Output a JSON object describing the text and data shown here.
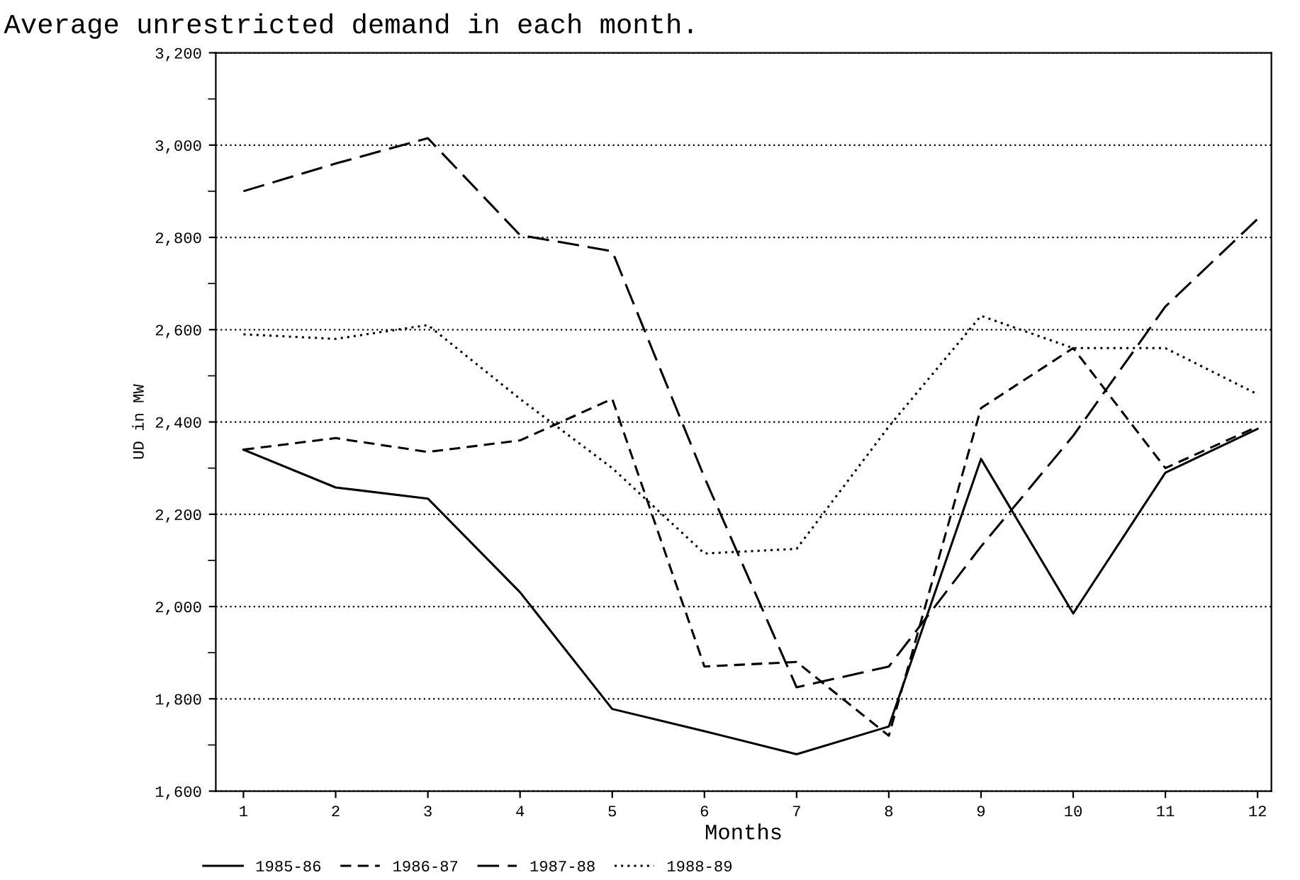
{
  "chart_data": {
    "type": "line",
    "title": "Average unrestricted demand in each month.",
    "xlabel": "Months",
    "ylabel": "UD in MW",
    "categories": [
      "1",
      "2",
      "3",
      "4",
      "5",
      "6",
      "7",
      "8",
      "9",
      "10",
      "11",
      "12"
    ],
    "series": [
      {
        "name": "1985-86",
        "color": "#000000",
        "line_style": "solid",
        "values": [
          2340,
          2258,
          2234,
          2031,
          1778,
          1730,
          1680,
          1740,
          2320,
          1985,
          2290,
          2385
        ]
      },
      {
        "name": "1986-87",
        "color": "#000000",
        "line_style": "dashed",
        "values": [
          2340,
          2365,
          2335,
          2360,
          2450,
          1870,
          1880,
          1720,
          2430,
          2560,
          2300,
          2390
        ]
      },
      {
        "name": "1987-88",
        "color": "#000000",
        "line_style": "longdash",
        "values": [
          2900,
          2960,
          3015,
          2805,
          2770,
          2280,
          1825,
          1870,
          2130,
          2370,
          2650,
          2840
        ]
      },
      {
        "name": "1988-89",
        "color": "#000000",
        "line_style": "dotted",
        "values": [
          2590,
          2580,
          2610,
          2450,
          2300,
          2115,
          2125,
          2390,
          2630,
          2560,
          2560,
          2460
        ]
      }
    ],
    "ylim": [
      1600,
      3200
    ],
    "yticks": [
      {
        "value": 1600,
        "label": "1,600"
      },
      {
        "value": 1700,
        "label": null
      },
      {
        "value": 1800,
        "label": "1,800"
      },
      {
        "value": 1900,
        "label": null
      },
      {
        "value": 2000,
        "label": "2,000"
      },
      {
        "value": 2100,
        "label": null
      },
      {
        "value": 2200,
        "label": "2,200"
      },
      {
        "value": 2300,
        "label": null
      },
      {
        "value": 2400,
        "label": "2,400"
      },
      {
        "value": 2500,
        "label": null
      },
      {
        "value": 2600,
        "label": "2,600"
      },
      {
        "value": 2700,
        "label": null
      },
      {
        "value": 2800,
        "label": "2,800"
      },
      {
        "value": 2900,
        "label": null
      },
      {
        "value": 3000,
        "label": "3,000"
      },
      {
        "value": 3100,
        "label": null
      },
      {
        "value": 3200,
        "label": "3,200"
      }
    ],
    "grid": "y",
    "legend": "bottom",
    "marker": "none"
  }
}
